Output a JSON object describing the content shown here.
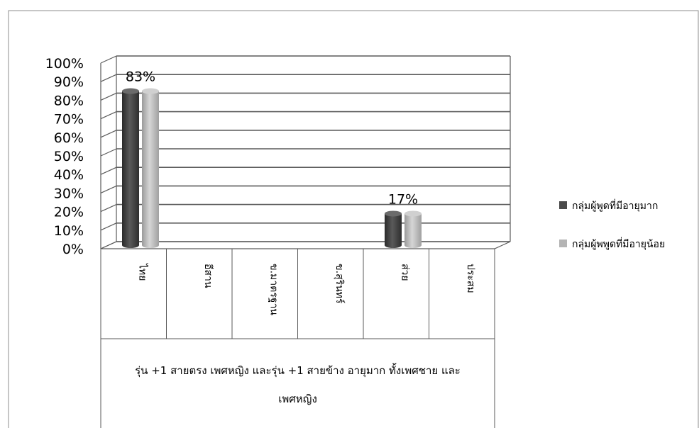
{
  "chart_data": {
    "type": "bar",
    "style": "3d-cylinder",
    "categories": [
      "ไทย",
      "อีสาน",
      "ข.มาตรฐาน",
      "ข.สุรินทร์",
      "ส่วย",
      "ประสม"
    ],
    "group_label": "รุ่น +1 สายตรง เพศหญิง และรุ่น +1 สายข้าง อายุมาก ทั้งเพศชาย และเพศหญิง",
    "group_label_lines": [
      "รุ่น +1 สายตรง เพศหญิง และรุ่น +1 สายข้าง อายุมาก ทั้งเพศชาย และ",
      "เพศหญิง"
    ],
    "series": [
      {
        "name": "กลุ่มผู้พูดที่มีอายุมาก",
        "values": [
          83,
          0,
          0,
          0,
          17,
          0
        ],
        "color": "#4a4a4a"
      },
      {
        "name": "กลุ่มผู้พพูดที่มีอายุน้อย",
        "values": [
          83,
          0,
          0,
          0,
          17,
          0
        ],
        "color": "#b4b4b4"
      }
    ],
    "data_labels": [
      {
        "category_index": 0,
        "text": "83%"
      },
      {
        "category_index": 4,
        "text": "17%"
      }
    ],
    "y_ticks": [
      "0%",
      "10%",
      "20%",
      "30%",
      "40%",
      "50%",
      "60%",
      "70%",
      "80%",
      "90%",
      "100%"
    ],
    "ylim": [
      0,
      100
    ],
    "grid": true,
    "legend_position": "right",
    "title": "",
    "xlabel": "",
    "ylabel": ""
  }
}
